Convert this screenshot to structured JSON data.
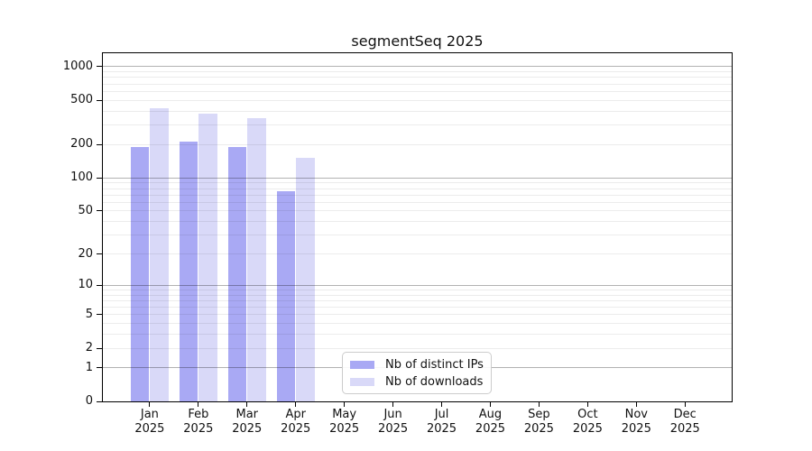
{
  "chart_data": {
    "type": "bar",
    "title": "segmentSeq 2025",
    "categories": [
      "Jan",
      "Feb",
      "Mar",
      "Apr",
      "May",
      "Jun",
      "Jul",
      "Aug",
      "Sep",
      "Oct",
      "Nov",
      "Dec"
    ],
    "year_label": "2025",
    "series": [
      {
        "name": "Nb of distinct IPs",
        "color": "#a9a9f4",
        "values": [
          189,
          212,
          189,
          75,
          null,
          null,
          null,
          null,
          null,
          null,
          null,
          null
        ]
      },
      {
        "name": "Nb of downloads",
        "color": "#d9d9f8",
        "values": [
          425,
          381,
          347,
          152,
          null,
          null,
          null,
          null,
          null,
          null,
          null,
          null
        ]
      }
    ],
    "y_ticks": [
      0,
      1,
      2,
      5,
      10,
      20,
      50,
      100,
      200,
      500,
      1000
    ],
    "y_scale": "symlog",
    "ylim": [
      0,
      1320
    ],
    "grid": "horizontal",
    "legend_position": "inside-bottom-center",
    "colors": {
      "grid_minor": "#ebebeb",
      "grid_major": "#b3b3b3",
      "axis": "#000000",
      "text": "#111111",
      "background": "#ffffff"
    }
  }
}
